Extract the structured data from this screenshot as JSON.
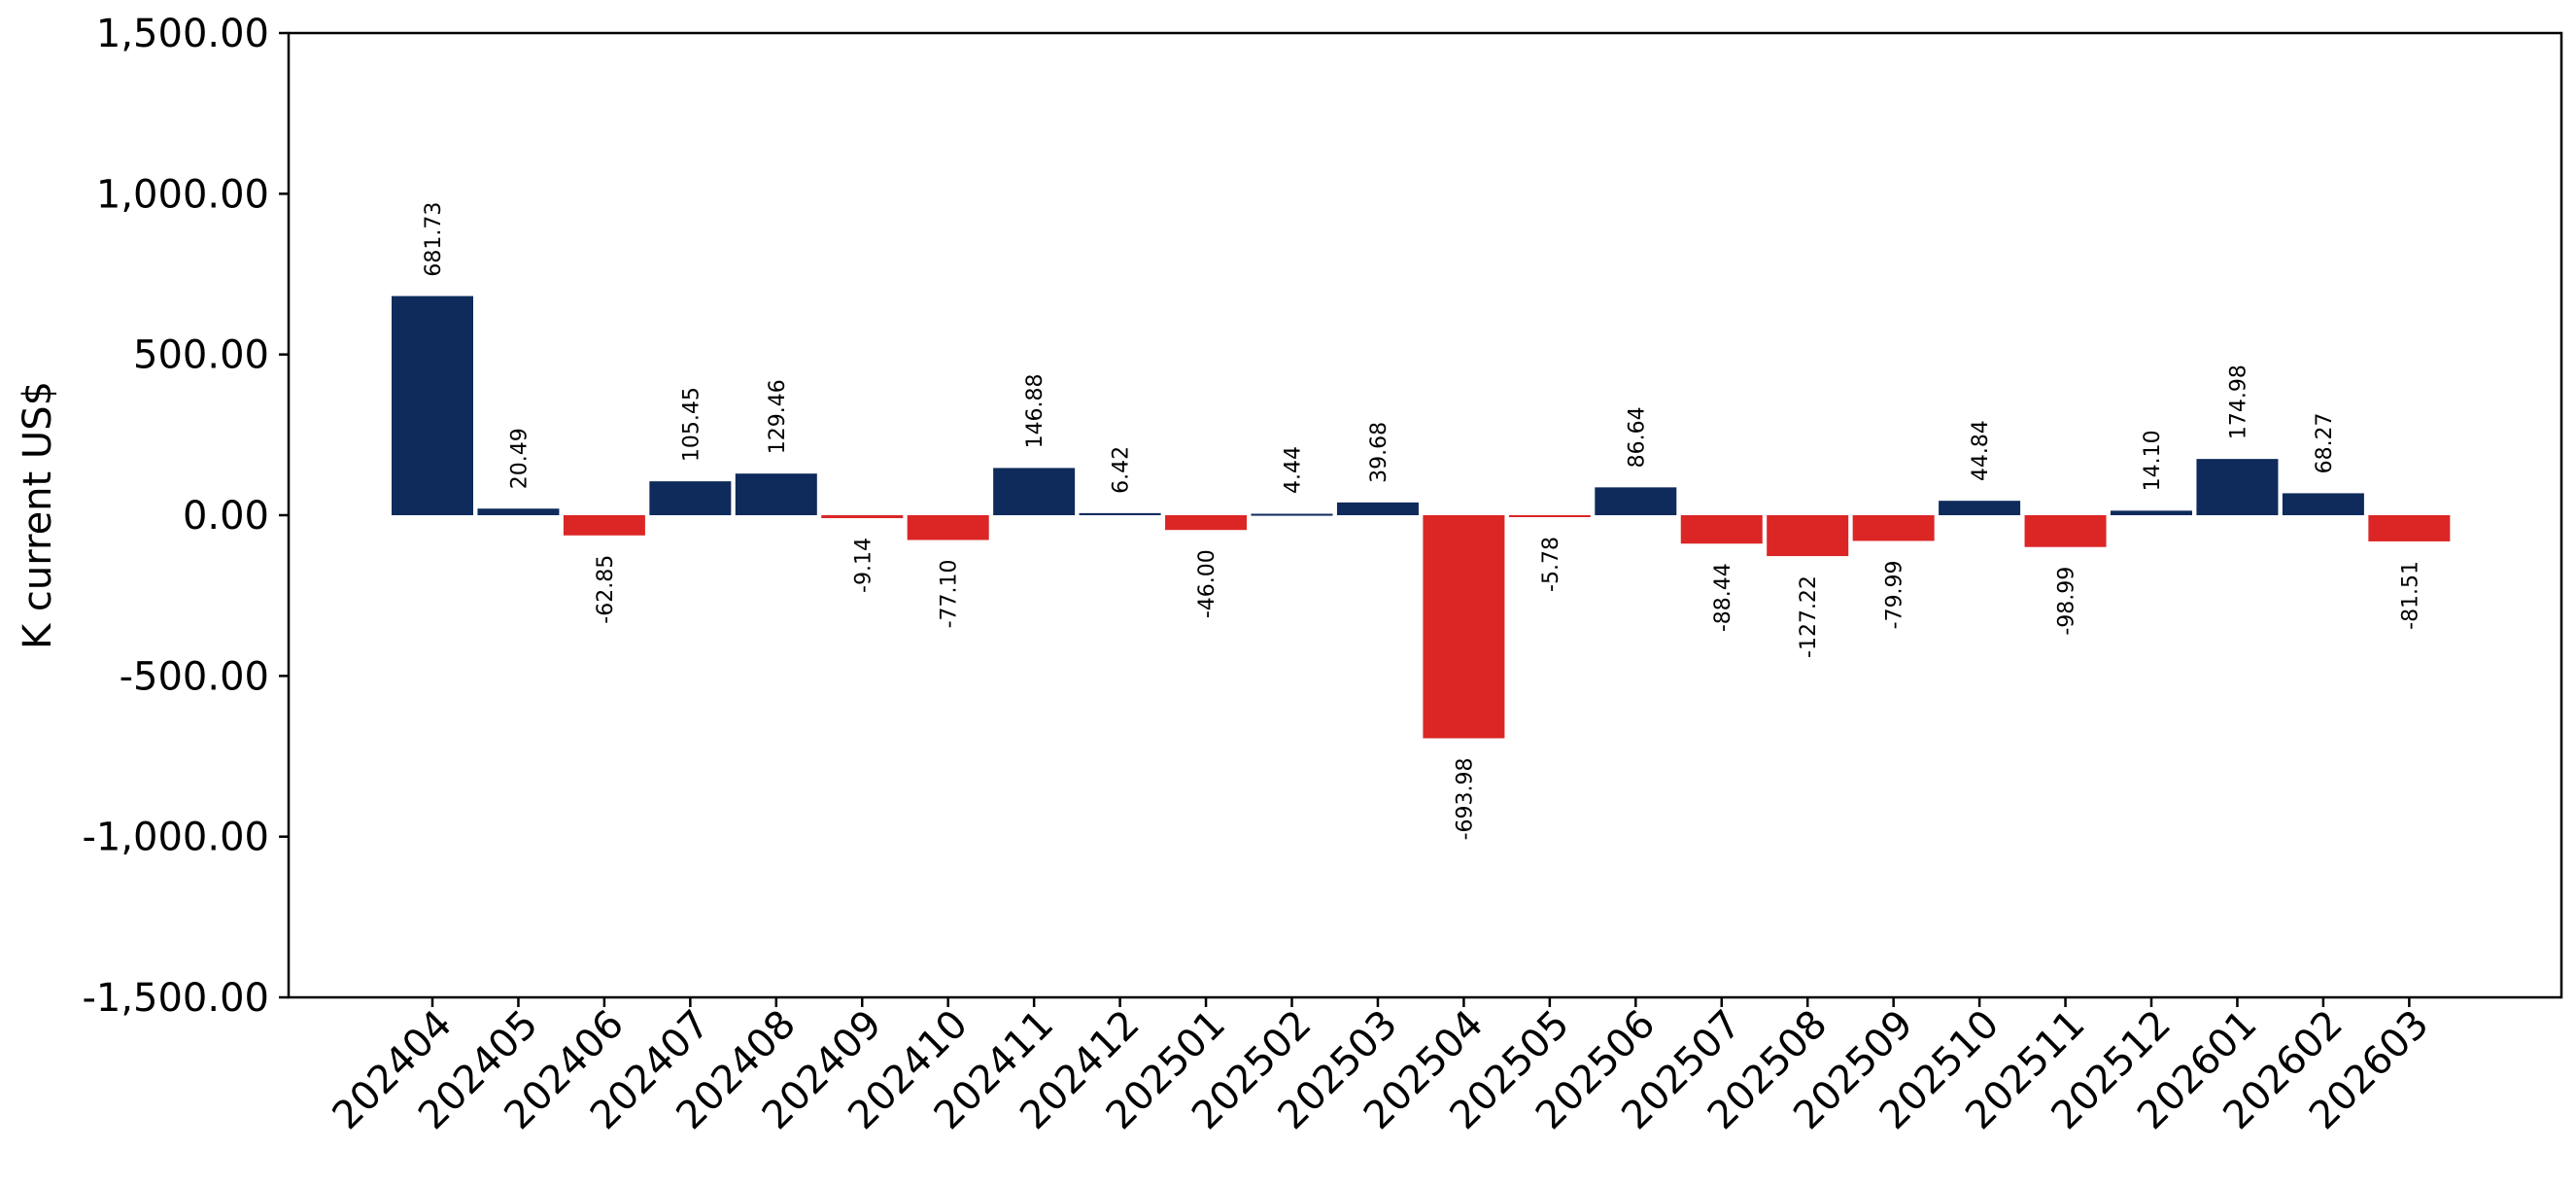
{
  "chart_data": {
    "type": "bar",
    "title": "",
    "xlabel": "",
    "ylabel": "K current US$",
    "ylim": [
      -1500,
      1500
    ],
    "yticks": [
      1500,
      1000,
      500,
      0,
      -500,
      -1000,
      -1500
    ],
    "ytick_labels": [
      "1,500.00",
      "1,000.00",
      "500.00",
      "0.00",
      "-500.00",
      "-1,000.00",
      "-1,500.00"
    ],
    "grid": false,
    "legend": "none",
    "colors": {
      "positive": "#0e2b5c",
      "negative": "#dc2626"
    },
    "categories": [
      "202404",
      "202405",
      "202406",
      "202407",
      "202408",
      "202409",
      "202410",
      "202411",
      "202412",
      "202501",
      "202502",
      "202503",
      "202504",
      "202505",
      "202506",
      "202507",
      "202508",
      "202509",
      "202510",
      "202511",
      "202512",
      "202601",
      "202602",
      "202603"
    ],
    "values": [
      681.73,
      20.49,
      -62.85,
      105.45,
      129.46,
      -9.14,
      -77.1,
      146.88,
      6.42,
      -46.0,
      4.44,
      39.68,
      -693.98,
      -5.78,
      86.64,
      -88.44,
      -127.22,
      -79.99,
      44.84,
      -98.99,
      14.1,
      174.98,
      68.27,
      -81.51
    ],
    "value_labels": [
      "681.73",
      "20.49",
      "-62.85",
      "105.45",
      "129.46",
      "-9.14",
      "-77.10",
      "146.88",
      "6.42",
      "-46.00",
      "4.44",
      "39.68",
      "-693.98",
      "-5.78",
      "86.64",
      "-88.44",
      "-127.22",
      "-79.99",
      "44.84",
      "-98.99",
      "14.10",
      "174.98",
      "68.27",
      "-81.51"
    ]
  }
}
